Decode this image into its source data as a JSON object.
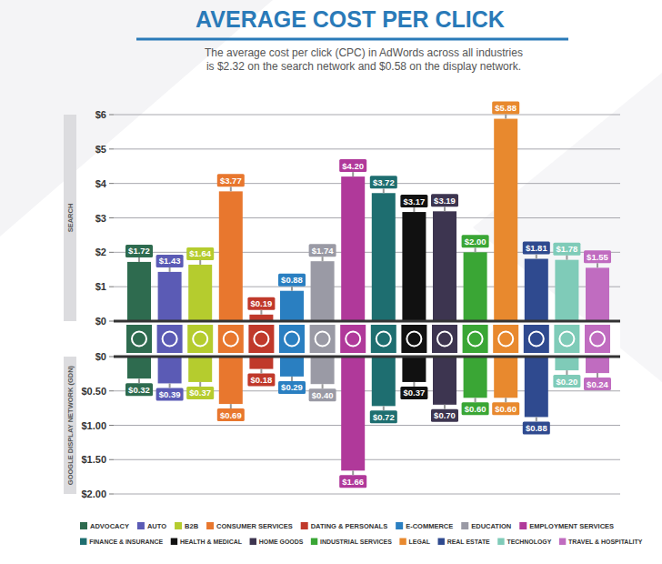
{
  "chart_data": {
    "type": "bar",
    "title": "AVERAGE COST PER CLICK",
    "subtitle": [
      "The average cost per click (CPC) in AdWords across all industries",
      "is $2.32 on the search network and $0.58 on the display network."
    ],
    "categories": [
      "ADVOCACY",
      "AUTO",
      "B2B",
      "CONSUMER SERVICES",
      "DATING & PERSONALS",
      "E-COMMERCE",
      "EDUCATION",
      "EMPLOYMENT SERVICES",
      "FINANCE & INSURANCE",
      "HEALTH & MEDICAL",
      "HOME GOODS",
      "INDUSTRIAL SERVICES",
      "LEGAL",
      "REAL ESTATE",
      "TECHNOLOGY",
      "TRAVEL & HOSPITALITY"
    ],
    "colors": [
      "#2e6b4f",
      "#5b5bb5",
      "#b5cc2e",
      "#e8772e",
      "#c0392b",
      "#2a7fc1",
      "#9a9aa5",
      "#b0399a",
      "#1e6e70",
      "#111111",
      "#3d3550",
      "#3aa635",
      "#e8892e",
      "#2f4a8f",
      "#7fcbb8",
      "#c06cc0"
    ],
    "series": [
      {
        "name": "SEARCH",
        "values": [
          1.72,
          1.43,
          1.64,
          3.77,
          0.19,
          0.88,
          1.74,
          4.2,
          3.72,
          3.17,
          3.19,
          2.0,
          5.88,
          1.81,
          1.78,
          1.55
        ],
        "value_labels": [
          "$1.72",
          "$1.43",
          "$1.64",
          "$3.77",
          "$0.19",
          "$0.88",
          "$1.74",
          "$4.20",
          "$3.72",
          "$3.17",
          "$3.19",
          "$2.00",
          "$5.88",
          "$1.81",
          "$1.78",
          "$1.55"
        ]
      },
      {
        "name": "GOOGLE DISPLAY NETWORK (GDN)",
        "axis": "y2",
        "values": [
          0.32,
          0.39,
          0.37,
          0.69,
          0.18,
          0.29,
          0.4,
          1.66,
          0.72,
          0.37,
          0.7,
          0.6,
          0.6,
          0.88,
          0.2,
          0.24
        ],
        "value_labels": [
          "$0.32",
          "$0.39",
          "$0.37",
          "$0.69",
          "$0.18",
          "$0.29",
          "$0.40",
          "$1.66",
          "$0.72",
          "$0.37",
          "$0.70",
          "$0.60",
          "$0.60",
          "$0.88",
          "$0.20",
          "$0.24"
        ]
      }
    ],
    "ylim": [
      0,
      6
    ],
    "yticks": [
      {
        "value": 6,
        "label": "$6"
      },
      {
        "value": 5,
        "label": "$5"
      },
      {
        "value": 4,
        "label": "$4"
      },
      {
        "value": 3,
        "label": "$3"
      },
      {
        "value": 2,
        "label": "$2"
      },
      {
        "value": 1,
        "label": "$1"
      },
      {
        "value": 0,
        "label": "$0"
      }
    ],
    "y2lim": [
      0,
      2
    ],
    "y2ticks": [
      {
        "value": 0,
        "label": "$0"
      },
      {
        "value": 0.5,
        "label": "$0.50"
      },
      {
        "value": 1,
        "label": "$1.00"
      },
      {
        "value": 1.5,
        "label": "$1.50"
      },
      {
        "value": 2,
        "label": "$2.00"
      }
    ],
    "grid": true,
    "data_labels": true,
    "legend": "bottom"
  }
}
